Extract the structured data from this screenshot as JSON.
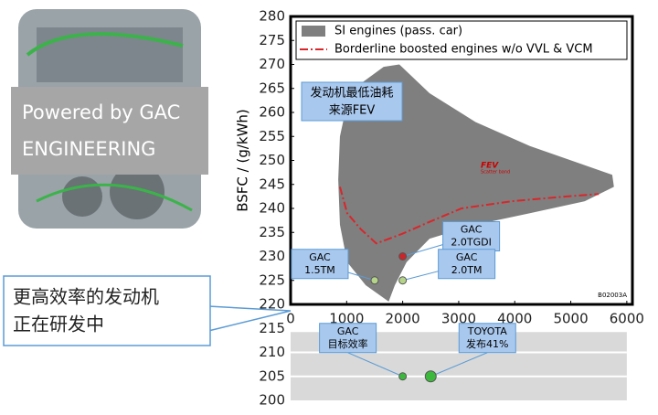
{
  "chart_data": {
    "type": "area-scatter",
    "ylabel": "BSFC / (g/kWh)",
    "xlim": [
      0,
      6100
    ],
    "ylim": [
      200,
      280
    ],
    "xticks": [
      0,
      1000,
      2000,
      3000,
      4000,
      5000,
      6000
    ],
    "yticks": [
      200,
      205,
      210,
      215,
      220,
      225,
      230,
      235,
      240,
      245,
      250,
      255,
      260,
      265,
      270,
      275,
      280
    ],
    "series": [
      {
        "name": "SI engines (pass. car)",
        "color": "#7f7f7f",
        "kind": "area",
        "x": [
          850,
          880,
          1010,
          1250,
          1660,
          1940,
          2480,
          3300,
          4270,
          5250,
          5740,
          5770,
          5250,
          4270,
          3300,
          2480,
          2070,
          1860,
          1750,
          1340,
          1010,
          880
        ],
        "values": [
          246,
          255,
          262,
          266,
          269.5,
          270,
          264,
          258,
          253,
          249,
          247,
          244.5,
          241.5,
          239,
          236.6,
          233.7,
          228.8,
          224,
          220.6,
          224,
          228.8,
          236.6
        ]
      },
      {
        "name": "Borderline boosted engines w/o VVL & VCM",
        "color": "#d9262a",
        "kind": "line",
        "x": [
          880,
          1010,
          1250,
          1530,
          1990,
          2480,
          3050,
          3950,
          4930,
          5500
        ],
        "values": [
          244.5,
          239,
          235.7,
          232.7,
          234.7,
          237.2,
          240,
          241.5,
          242.5,
          243
        ]
      }
    ],
    "points": [
      {
        "label": [
          "GAC",
          "2.0TGDI"
        ],
        "x": 2000,
        "y": 230,
        "color": "#c8262a"
      },
      {
        "label": [
          "GAC",
          "1.5TM"
        ],
        "x": 1500,
        "y": 225,
        "color": "#b5d48a"
      },
      {
        "label": [
          "GAC",
          "2.0TM"
        ],
        "x": 2000,
        "y": 225,
        "color": "#b5d48a"
      },
      {
        "label": [
          "GAC",
          "目标效率"
        ],
        "x": 2000,
        "y": 205,
        "color": "#3cb83c"
      },
      {
        "label": [
          "TOYOTA",
          "发布41%"
        ],
        "x": 2500,
        "y": 205,
        "color": "#3cb83c"
      }
    ],
    "note": [
      "发动机最低油耗",
      "来源FEV"
    ],
    "fev": "FEV",
    "fev_sub": "Scatter band",
    "code": "B02003A",
    "banner": [
      "Powered by GAC",
      "ENGINEERING"
    ],
    "callout": [
      "更高效率的发动机",
      "正在研发中"
    ]
  }
}
